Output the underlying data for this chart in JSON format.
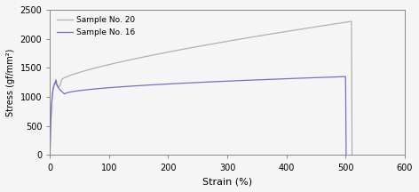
{
  "title": "",
  "xlabel": "Strain (%)",
  "ylabel": "Stress (gf/mm²)",
  "xlim": [
    0,
    600
  ],
  "ylim": [
    0,
    2500
  ],
  "xticks": [
    0,
    100,
    200,
    300,
    400,
    500,
    600
  ],
  "yticks": [
    0,
    500,
    1000,
    1500,
    2000,
    2500
  ],
  "legend": [
    "Sample No. 20",
    "Sample No. 16"
  ],
  "color_20": "#b0b0b0",
  "color_16": "#7070cc",
  "bg_color": "#f5f5f5",
  "linewidth": 0.9
}
